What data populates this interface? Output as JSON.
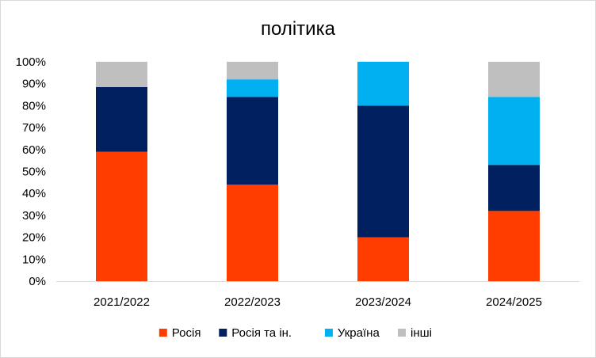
{
  "chart_data": {
    "type": "bar",
    "stacked": true,
    "percent": true,
    "title": "політика",
    "xlabel": "",
    "ylabel": "",
    "ylim": [
      0,
      100
    ],
    "yticks": [
      "0%",
      "10%",
      "20%",
      "30%",
      "40%",
      "50%",
      "60%",
      "70%",
      "80%",
      "90%",
      "100%"
    ],
    "categories": [
      "2021/2022",
      "2022/2023",
      "2023/2024",
      "2024/2025"
    ],
    "series": [
      {
        "name": "Росія",
        "color": "#ff3d00",
        "values": [
          59,
          44,
          20,
          32
        ]
      },
      {
        "name": "Росія та ін.",
        "color": "#002060",
        "values": [
          29.5,
          40,
          60,
          21
        ]
      },
      {
        "name": "Україна",
        "color": "#00b0f0",
        "values": [
          0,
          8,
          20,
          31
        ]
      },
      {
        "name": "інші",
        "color": "#bfbfbf",
        "values": [
          11.5,
          8,
          0,
          16
        ]
      }
    ],
    "legend_position": "bottom",
    "grid": false
  }
}
